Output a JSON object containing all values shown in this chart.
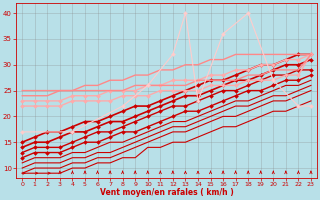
{
  "xlabel": "Vent moyen/en rafales ( km/h )",
  "background_color": "#b8e0e8",
  "grid_color": "#888888",
  "xlim": [
    -0.5,
    23.5
  ],
  "ylim": [
    8,
    42
  ],
  "xticks": [
    0,
    1,
    2,
    3,
    4,
    5,
    6,
    7,
    8,
    9,
    10,
    11,
    12,
    13,
    14,
    15,
    16,
    17,
    18,
    19,
    20,
    21,
    22,
    23
  ],
  "yticks": [
    10,
    15,
    20,
    25,
    30,
    35,
    40
  ],
  "lines": [
    {
      "x": [
        0,
        1,
        2,
        3,
        4,
        5,
        6,
        7,
        8,
        9,
        10,
        11,
        12,
        13,
        14,
        15,
        16,
        17,
        18,
        19,
        20,
        21,
        22,
        23
      ],
      "y": [
        9,
        9,
        9,
        9,
        10,
        10,
        11,
        11,
        12,
        12,
        14,
        14,
        15,
        15,
        16,
        17,
        18,
        18,
        19,
        20,
        21,
        21,
        22,
        23
      ],
      "color": "#cc0000",
      "lw": 0.8,
      "marker": null
    },
    {
      "x": [
        0,
        1,
        2,
        3,
        4,
        5,
        6,
        7,
        8,
        9,
        10,
        11,
        12,
        13,
        14,
        15,
        16,
        17,
        18,
        19,
        20,
        21,
        22,
        23
      ],
      "y": [
        9,
        10,
        10,
        10,
        11,
        11,
        12,
        12,
        13,
        14,
        15,
        16,
        17,
        17,
        18,
        19,
        20,
        20,
        21,
        22,
        23,
        23,
        24,
        25
      ],
      "color": "#cc0000",
      "lw": 0.8,
      "marker": null
    },
    {
      "x": [
        0,
        1,
        2,
        3,
        4,
        5,
        6,
        7,
        8,
        9,
        10,
        11,
        12,
        13,
        14,
        15,
        16,
        17,
        18,
        19,
        20,
        21,
        22,
        23
      ],
      "y": [
        10,
        11,
        11,
        11,
        12,
        12,
        13,
        13,
        14,
        15,
        16,
        17,
        18,
        18,
        19,
        20,
        21,
        22,
        22,
        23,
        24,
        24,
        25,
        26
      ],
      "color": "#cc0000",
      "lw": 0.8,
      "marker": null
    },
    {
      "x": [
        0,
        1,
        2,
        3,
        4,
        5,
        6,
        7,
        8,
        9,
        10,
        11,
        12,
        13,
        14,
        15,
        16,
        17,
        18,
        19,
        20,
        21,
        22,
        23
      ],
      "y": [
        11,
        12,
        12,
        12,
        13,
        13,
        14,
        15,
        15,
        16,
        17,
        18,
        19,
        19,
        20,
        21,
        22,
        23,
        23,
        24,
        25,
        26,
        26,
        27
      ],
      "color": "#cc0000",
      "lw": 0.8,
      "marker": null
    },
    {
      "x": [
        0,
        1,
        2,
        3,
        4,
        5,
        6,
        7,
        8,
        9,
        10,
        11,
        12,
        13,
        14,
        15,
        16,
        17,
        18,
        19,
        20,
        21,
        22,
        23
      ],
      "y": [
        12,
        13,
        13,
        13,
        14,
        15,
        15,
        16,
        17,
        17,
        18,
        19,
        20,
        21,
        21,
        22,
        23,
        24,
        25,
        25,
        26,
        27,
        27,
        28
      ],
      "color": "#cc0000",
      "lw": 1.0,
      "marker": "D",
      "markersize": 2
    },
    {
      "x": [
        0,
        1,
        2,
        3,
        4,
        5,
        6,
        7,
        8,
        9,
        10,
        11,
        12,
        13,
        14,
        15,
        16,
        17,
        18,
        19,
        20,
        21,
        22,
        23
      ],
      "y": [
        13,
        14,
        14,
        14,
        15,
        16,
        17,
        17,
        18,
        19,
        20,
        21,
        22,
        22,
        23,
        24,
        25,
        25,
        26,
        27,
        28,
        28,
        29,
        29
      ],
      "color": "#cc0000",
      "lw": 1.0,
      "marker": "D",
      "markersize": 2
    },
    {
      "x": [
        0,
        1,
        2,
        3,
        4,
        5,
        6,
        7,
        8,
        9,
        10,
        11,
        12,
        13,
        14,
        15,
        16,
        17,
        18,
        19,
        20,
        21,
        22,
        23
      ],
      "y": [
        14,
        15,
        15,
        16,
        17,
        17,
        18,
        19,
        19,
        20,
        21,
        22,
        23,
        24,
        24,
        25,
        26,
        27,
        27,
        28,
        29,
        30,
        30,
        31
      ],
      "color": "#cc0000",
      "lw": 1.2,
      "marker": "D",
      "markersize": 2
    },
    {
      "x": [
        0,
        1,
        2,
        3,
        4,
        5,
        6,
        7,
        8,
        9,
        10,
        11,
        12,
        13,
        14,
        15,
        16,
        17,
        18,
        19,
        20,
        21,
        22,
        23
      ],
      "y": [
        15,
        16,
        17,
        17,
        18,
        19,
        19,
        20,
        21,
        22,
        22,
        23,
        24,
        25,
        26,
        27,
        27,
        28,
        29,
        30,
        30,
        31,
        32,
        32
      ],
      "color": "#cc0000",
      "lw": 1.2,
      "marker": "D",
      "markersize": 2
    },
    {
      "x": [
        0,
        1,
        2,
        3,
        4,
        5,
        6,
        7,
        8,
        9,
        10,
        11,
        12,
        13,
        14,
        15,
        16,
        17,
        18,
        19,
        20,
        21,
        22,
        23
      ],
      "y": [
        22,
        22,
        22,
        22,
        23,
        23,
        23,
        23,
        24,
        24,
        24,
        25,
        25,
        25,
        25,
        26,
        26,
        26,
        27,
        27,
        27,
        28,
        28,
        32
      ],
      "color": "#ffaaaa",
      "lw": 1.0,
      "marker": "D",
      "markersize": 2
    },
    {
      "x": [
        0,
        1,
        2,
        3,
        4,
        5,
        6,
        7,
        8,
        9,
        10,
        11,
        12,
        13,
        14,
        15,
        16,
        17,
        18,
        19,
        20,
        21,
        22,
        23
      ],
      "y": [
        23,
        23,
        23,
        23,
        24,
        24,
        24,
        25,
        25,
        25,
        26,
        26,
        27,
        27,
        27,
        28,
        28,
        29,
        29,
        30,
        30,
        31,
        31,
        32
      ],
      "color": "#ffaaaa",
      "lw": 1.0,
      "marker": "D",
      "markersize": 2
    },
    {
      "x": [
        0,
        1,
        2,
        3,
        4,
        5,
        6,
        7,
        8,
        9,
        10,
        11,
        12,
        13,
        14,
        15,
        16,
        17,
        18,
        19,
        20,
        21,
        22,
        23
      ],
      "y": [
        24,
        24,
        24,
        25,
        25,
        26,
        26,
        27,
        27,
        28,
        28,
        29,
        29,
        30,
        30,
        31,
        31,
        32,
        32,
        32,
        32,
        32,
        32,
        32
      ],
      "color": "#ff8888",
      "lw": 1.0,
      "marker": null
    },
    {
      "x": [
        0,
        1,
        2,
        3,
        4,
        5,
        6,
        7,
        8,
        9,
        10,
        11,
        12,
        13,
        14,
        15,
        16,
        17,
        18,
        19,
        20,
        21,
        22,
        23
      ],
      "y": [
        25,
        25,
        25,
        25,
        25,
        25,
        25,
        25,
        25,
        26,
        26,
        26,
        26,
        26,
        27,
        27,
        27,
        27,
        28,
        28,
        29,
        29,
        29,
        32
      ],
      "color": "#ff8888",
      "lw": 1.0,
      "marker": null
    },
    {
      "x": [
        0,
        4,
        8,
        10,
        12,
        13,
        14,
        16,
        18,
        20,
        22,
        23
      ],
      "y": [
        17,
        17,
        22,
        26,
        32,
        40,
        23,
        36,
        40,
        27,
        22,
        22
      ],
      "color": "#ffcccc",
      "lw": 0.8,
      "marker": "D",
      "markersize": 2
    }
  ],
  "wind_arrows": {
    "x": [
      0,
      1,
      2,
      3,
      4,
      5,
      6,
      7,
      8,
      9,
      10,
      11,
      12,
      13,
      14,
      15,
      16,
      17,
      18,
      19,
      20,
      21,
      22,
      23
    ],
    "y": 9.0,
    "color": "#cc0000",
    "horizontal_up_to": 2
  }
}
